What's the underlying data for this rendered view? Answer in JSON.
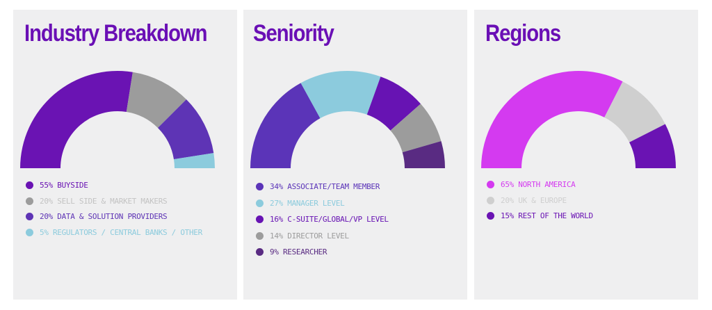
{
  "chart_data": [
    {
      "type": "pie",
      "variant": "half-donut",
      "title": "Industry Breakdown",
      "categories": [
        "BUYSIDE",
        "SELL SIDE & MARKET MAKERS",
        "DATA & SOLUTION PROVIDERS",
        "REGULATORS / CENTRAL BANKS / OTHER"
      ],
      "values": [
        55,
        20,
        20,
        5
      ],
      "legend": [
        "55% BUYSIDE",
        "20% SELL SIDE & MARKET MAKERS",
        "20% DATA & SOLUTION PROVIDERS",
        "5% REGULATORS / CENTRAL BANKS / OTHER"
      ],
      "colors": [
        "#6a13b3",
        "#9c9c9c",
        "#5e34b5",
        "#8ccbdd"
      ],
      "text_colors": [
        "#6a13b3",
        "#c3c3c3",
        "#5e34b5",
        "#8ccbdd"
      ],
      "legend_placement": "bottom"
    },
    {
      "type": "pie",
      "variant": "half-donut",
      "title": "Seniority",
      "categories": [
        "ASSOCIATE/TEAM MEMBER",
        "MANAGER LEVEL",
        "C-SUITE/GLOBAL/VP LEVEL",
        "DIRECTOR LEVEL",
        "RESEARCHER"
      ],
      "values": [
        34,
        27,
        16,
        14,
        9
      ],
      "legend": [
        "34% ASSOCIATE/TEAM MEMBER",
        "27% MANAGER LEVEL",
        "16% C-SUITE/GLOBAL/VP LEVEL",
        "14% DIRECTOR LEVEL",
        "9% RESEARCHER"
      ],
      "colors": [
        "#5b34b8",
        "#8ccbdd",
        "#6713b3",
        "#9c9c9c",
        "#592b82"
      ],
      "text_colors": [
        "#5b34b8",
        "#8ccbdd",
        "#6713b3",
        "#9c9c9c",
        "#592b82"
      ],
      "legend_placement": "bottom"
    },
    {
      "type": "pie",
      "variant": "half-donut",
      "title": "Regions",
      "categories": [
        "NORTH AMERICA",
        "UK & EUROPE",
        "REST OF THE WORLD"
      ],
      "values": [
        65,
        20,
        15
      ],
      "legend": [
        "65% NORTH AMERICA",
        "20% UK & EUROPE",
        "15% REST OF THE WORLD"
      ],
      "colors": [
        "#d43af0",
        "#cfcfcf",
        "#6a13b3"
      ],
      "text_colors": [
        "#d43af0",
        "#cfcfcf",
        "#6a13b3"
      ],
      "legend_placement": "bottom"
    }
  ]
}
